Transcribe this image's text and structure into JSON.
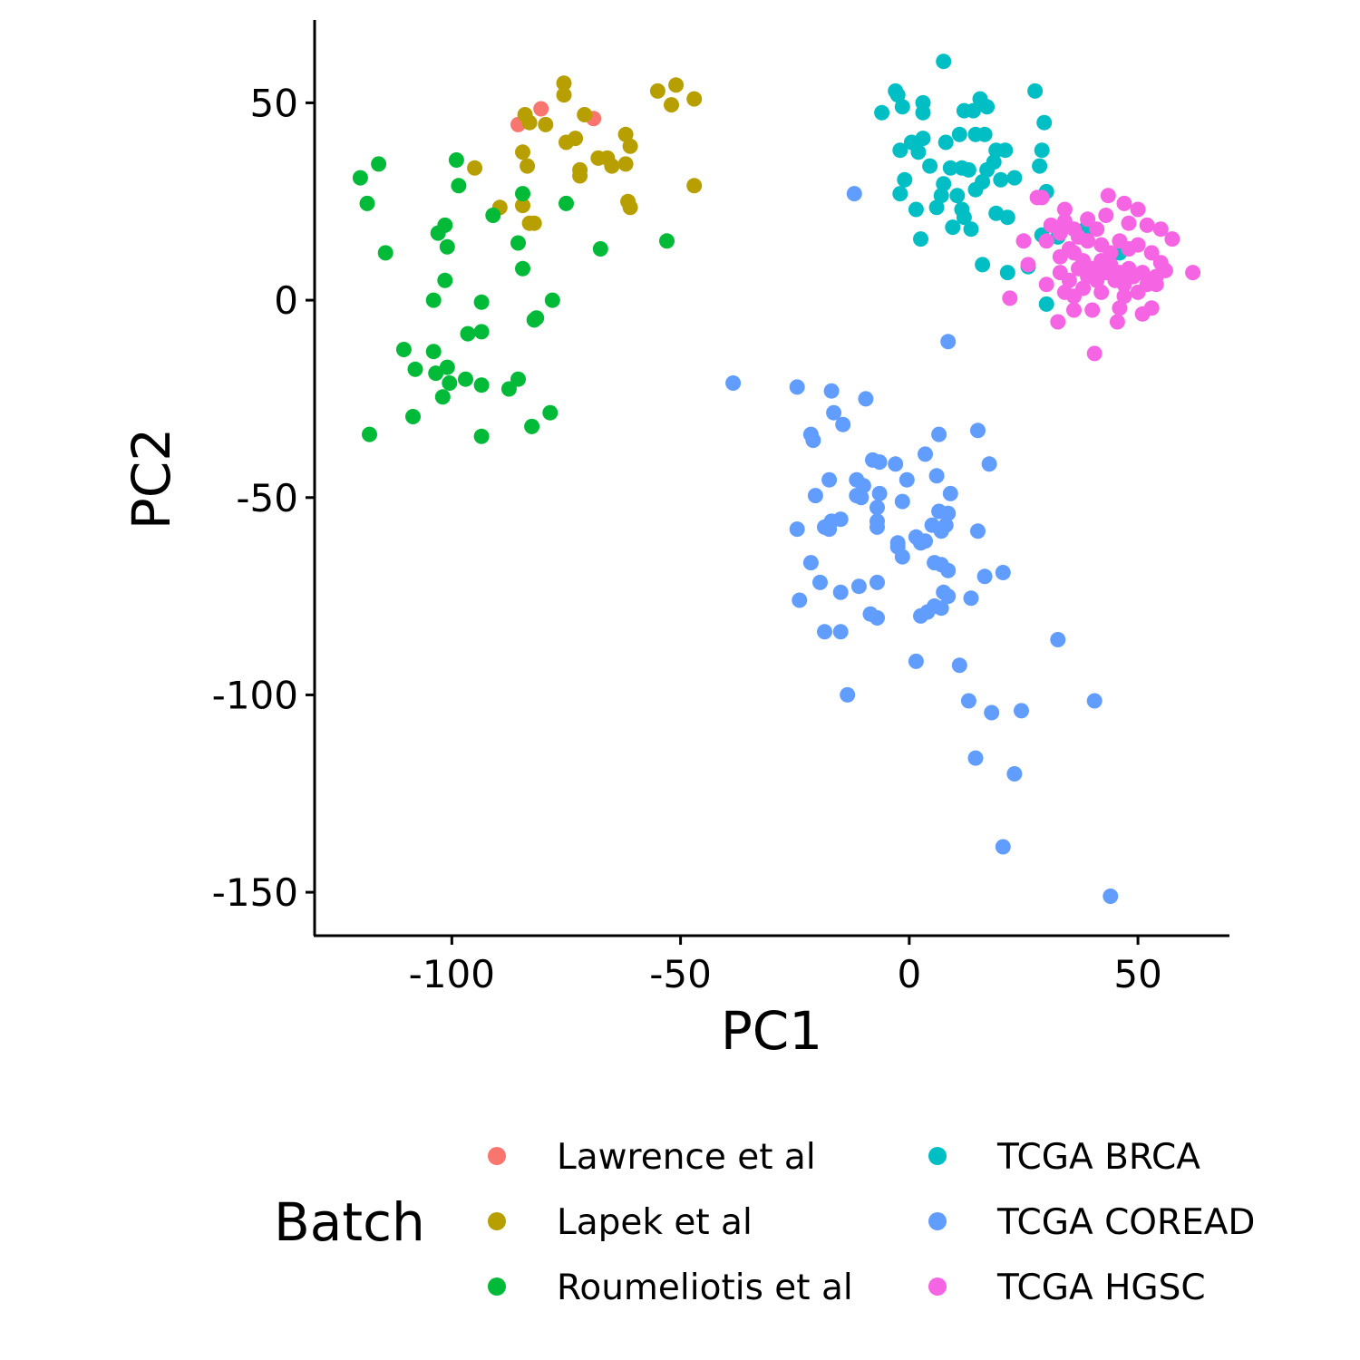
{
  "chart_data": {
    "type": "scatter",
    "xlabel": "PC1",
    "ylabel": "PC2",
    "xlim": [
      -130,
      70
    ],
    "ylim": [
      -161,
      71
    ],
    "x_ticks": [
      -100,
      -50,
      0,
      50
    ],
    "x_tick_labels": [
      "-100",
      "-50",
      "0",
      "50"
    ],
    "y_ticks": [
      50,
      0,
      -50,
      -100,
      -150
    ],
    "y_tick_labels": [
      "50",
      "0",
      "-50",
      "-100",
      "-150"
    ],
    "grid": false,
    "legend": {
      "title": "Batch",
      "position": "bottom",
      "columns": 2
    },
    "series": [
      {
        "name": "Lawrence et al",
        "color": "#F8766D",
        "points": [
          [
            -80.5,
            48.5
          ],
          [
            -85.5,
            44.5
          ],
          [
            -69,
            46
          ]
        ]
      },
      {
        "name": "Lapek et al",
        "color": "#B79F00",
        "points": [
          [
            -75.5,
            55
          ],
          [
            -75.5,
            52
          ],
          [
            -84,
            47
          ],
          [
            -83,
            45
          ],
          [
            -79.5,
            44.5
          ],
          [
            -71,
            47
          ],
          [
            -73,
            41
          ],
          [
            -75,
            40
          ],
          [
            -84.5,
            37.5
          ],
          [
            -83.5,
            34
          ],
          [
            -62,
            42
          ],
          [
            -61,
            39
          ],
          [
            -72,
            33
          ],
          [
            -72,
            31.5
          ],
          [
            -68,
            36
          ],
          [
            -66,
            36
          ],
          [
            -65,
            34
          ],
          [
            -62,
            34.5
          ],
          [
            -55,
            53
          ],
          [
            -51,
            54.5
          ],
          [
            -52,
            49.5
          ],
          [
            -47,
            51
          ],
          [
            -47,
            29
          ],
          [
            -95,
            33.5
          ],
          [
            -89.5,
            23.5
          ],
          [
            -83,
            19.5
          ],
          [
            -82,
            19.5
          ],
          [
            -84.5,
            24
          ],
          [
            -61.5,
            25
          ],
          [
            -61,
            23.5
          ]
        ]
      },
      {
        "name": "Roumeliotis et al",
        "color": "#00BA38",
        "points": [
          [
            -116,
            34.5
          ],
          [
            -120,
            31
          ],
          [
            -118.5,
            24.5
          ],
          [
            -114.5,
            12
          ],
          [
            -99,
            35.5
          ],
          [
            -98.5,
            29
          ],
          [
            -91,
            21.5
          ],
          [
            -84.5,
            27
          ],
          [
            -75,
            24.5
          ],
          [
            -101.5,
            19
          ],
          [
            -103,
            17
          ],
          [
            -101,
            13.5
          ],
          [
            -101.5,
            5
          ],
          [
            -104,
            0
          ],
          [
            -93.5,
            -0.5
          ],
          [
            -85.5,
            14.5
          ],
          [
            -84.5,
            8
          ],
          [
            -67.5,
            13
          ],
          [
            -53,
            15
          ],
          [
            -78,
            0
          ],
          [
            -81.5,
            -4.5
          ],
          [
            -82,
            -5
          ],
          [
            -96.5,
            -8.5
          ],
          [
            -93.5,
            -8
          ],
          [
            -110.5,
            -12.5
          ],
          [
            -104,
            -13
          ],
          [
            -108,
            -17.5
          ],
          [
            -101,
            -17
          ],
          [
            -103.5,
            -18.5
          ],
          [
            -100.5,
            -21
          ],
          [
            -97,
            -20
          ],
          [
            -93.5,
            -21.5
          ],
          [
            -102,
            -24.5
          ],
          [
            -87.5,
            -22.5
          ],
          [
            -85.5,
            -20
          ],
          [
            -78.5,
            -28.5
          ],
          [
            -108.5,
            -29.5
          ],
          [
            -118,
            -34
          ],
          [
            -93.5,
            -34.5
          ],
          [
            -82.5,
            -32
          ]
        ]
      },
      {
        "name": "TCGA BRCA",
        "color": "#00BFC4",
        "points": [
          [
            7.5,
            60.5
          ],
          [
            -3,
            53
          ],
          [
            -2.5,
            52
          ],
          [
            -1.5,
            49
          ],
          [
            3,
            50
          ],
          [
            3,
            47.5
          ],
          [
            -6,
            47.5
          ],
          [
            15.5,
            51
          ],
          [
            17,
            49
          ],
          [
            12,
            48
          ],
          [
            14,
            48
          ],
          [
            27.5,
            53
          ],
          [
            29.5,
            45
          ],
          [
            3,
            41
          ],
          [
            0.5,
            40
          ],
          [
            -2,
            38
          ],
          [
            2,
            37.5
          ],
          [
            4.5,
            34
          ],
          [
            -1,
            30.5
          ],
          [
            -2,
            27
          ],
          [
            7.5,
            29.5
          ],
          [
            9,
            33.5
          ],
          [
            11.5,
            33.5
          ],
          [
            8,
            40
          ],
          [
            11,
            42
          ],
          [
            14.5,
            42
          ],
          [
            16.5,
            42
          ],
          [
            19,
            38
          ],
          [
            21,
            38
          ],
          [
            18.5,
            35
          ],
          [
            17,
            33
          ],
          [
            13,
            33
          ],
          [
            16,
            30
          ],
          [
            20,
            30.5
          ],
          [
            23,
            31
          ],
          [
            14.5,
            28
          ],
          [
            10.5,
            26.5
          ],
          [
            7,
            26.5
          ],
          [
            6,
            23.5
          ],
          [
            11.5,
            23
          ],
          [
            1.5,
            23
          ],
          [
            19,
            22
          ],
          [
            12,
            21
          ],
          [
            21.5,
            21
          ],
          [
            9.5,
            18.5
          ],
          [
            13.5,
            18
          ],
          [
            2.5,
            15.5
          ],
          [
            29,
            38
          ],
          [
            28.5,
            34
          ],
          [
            30,
            27.5
          ],
          [
            16,
            9
          ],
          [
            21.5,
            7
          ],
          [
            26,
            8.5
          ],
          [
            38.5,
            18
          ],
          [
            32.5,
            16
          ],
          [
            29,
            16.5
          ],
          [
            46,
            12
          ],
          [
            30,
            -1
          ]
        ]
      },
      {
        "name": "TCGA COREAD",
        "color": "#619CFF",
        "points": [
          [
            -12,
            27
          ],
          [
            8.5,
            -10.5
          ],
          [
            -38.5,
            -21
          ],
          [
            -24.5,
            -22
          ],
          [
            -17,
            -23
          ],
          [
            -9.5,
            -25
          ],
          [
            -16.5,
            -28.5
          ],
          [
            -14.5,
            -31.5
          ],
          [
            6.5,
            -34
          ],
          [
            15,
            -33
          ],
          [
            -21.5,
            -34
          ],
          [
            -21,
            -35.5
          ],
          [
            3.5,
            -39
          ],
          [
            -8,
            -40.5
          ],
          [
            -6.5,
            -41
          ],
          [
            -3,
            -41.5
          ],
          [
            17.5,
            -41.5
          ],
          [
            -17.5,
            -45.5
          ],
          [
            -11.5,
            -45.5
          ],
          [
            -10,
            -47
          ],
          [
            6,
            -44.5
          ],
          [
            -0.5,
            -45.5
          ],
          [
            9,
            -49
          ],
          [
            -11.5,
            -49.5
          ],
          [
            -10.5,
            -50
          ],
          [
            -20.5,
            -49.5
          ],
          [
            -6.5,
            -49
          ],
          [
            -1.5,
            -51
          ],
          [
            -7,
            -52.5
          ],
          [
            6.5,
            -53.5
          ],
          [
            8.5,
            -54
          ],
          [
            -15,
            -55.5
          ],
          [
            -17,
            -56
          ],
          [
            -18.5,
            -57.5
          ],
          [
            -24.5,
            -58
          ],
          [
            -17.5,
            -58
          ],
          [
            -7,
            -56
          ],
          [
            -7,
            -57.5
          ],
          [
            5,
            -57
          ],
          [
            8,
            -57
          ],
          [
            7,
            -58.5
          ],
          [
            15,
            -58.5
          ],
          [
            1.5,
            -60
          ],
          [
            3.5,
            -61
          ],
          [
            2.5,
            -61.5
          ],
          [
            -2.5,
            -61.5
          ],
          [
            -2.5,
            -62.5
          ],
          [
            -1.5,
            -65
          ],
          [
            5.5,
            -66.5
          ],
          [
            7,
            -67
          ],
          [
            8.5,
            -68.5
          ],
          [
            16.5,
            -70
          ],
          [
            20.5,
            -69
          ],
          [
            -21.5,
            -66.5
          ],
          [
            -19.5,
            -71.5
          ],
          [
            -11,
            -72.5
          ],
          [
            -7,
            -71.5
          ],
          [
            -15,
            -74
          ],
          [
            -24,
            -76
          ],
          [
            13.5,
            -75.5
          ],
          [
            7.5,
            -74
          ],
          [
            8.5,
            -75
          ],
          [
            5.5,
            -77.5
          ],
          [
            7,
            -78
          ],
          [
            4,
            -79
          ],
          [
            2.5,
            -80
          ],
          [
            -8.5,
            -79.5
          ],
          [
            -7,
            -80.5
          ],
          [
            -18.5,
            -84
          ],
          [
            -15,
            -84
          ],
          [
            1.5,
            -91.5
          ],
          [
            11,
            -92.5
          ],
          [
            32.5,
            -86
          ],
          [
            13,
            -101.5
          ],
          [
            18,
            -104.5
          ],
          [
            24.5,
            -104
          ],
          [
            -13.5,
            -100
          ],
          [
            40.5,
            -101.5
          ],
          [
            14.5,
            -116
          ],
          [
            23,
            -120
          ],
          [
            20.5,
            -138.5
          ],
          [
            44,
            -151
          ]
        ]
      },
      {
        "name": "TCGA HGSC",
        "color": "#F564E3",
        "points": [
          [
            28,
            26
          ],
          [
            29,
            26
          ],
          [
            34,
            23
          ],
          [
            43.5,
            26.5
          ],
          [
            47,
            24.5
          ],
          [
            50,
            23
          ],
          [
            39,
            20.5
          ],
          [
            43,
            21.5
          ],
          [
            41,
            18
          ],
          [
            48,
            19.5
          ],
          [
            52,
            19
          ],
          [
            55,
            18
          ],
          [
            57.5,
            15.5
          ],
          [
            31,
            19
          ],
          [
            34,
            20
          ],
          [
            36,
            18
          ],
          [
            33,
            17
          ],
          [
            30,
            15
          ],
          [
            25,
            15
          ],
          [
            35,
            13
          ],
          [
            37,
            16
          ],
          [
            39,
            15
          ],
          [
            42,
            14
          ],
          [
            44,
            12
          ],
          [
            46,
            15
          ],
          [
            48,
            13
          ],
          [
            50,
            14
          ],
          [
            53,
            12
          ],
          [
            55,
            9.5
          ],
          [
            56,
            7.5
          ],
          [
            62,
            7
          ],
          [
            33,
            11
          ],
          [
            36,
            12
          ],
          [
            38,
            10
          ],
          [
            40,
            8
          ],
          [
            42,
            10
          ],
          [
            44,
            9
          ],
          [
            46,
            7
          ],
          [
            48,
            8
          ],
          [
            51,
            7
          ],
          [
            54,
            6
          ],
          [
            26,
            9
          ],
          [
            33,
            7
          ],
          [
            35,
            5
          ],
          [
            37,
            8
          ],
          [
            39,
            6
          ],
          [
            41,
            5
          ],
          [
            43,
            7
          ],
          [
            45,
            5
          ],
          [
            47,
            4
          ],
          [
            49,
            6
          ],
          [
            52,
            4
          ],
          [
            54,
            4
          ],
          [
            30,
            4
          ],
          [
            34,
            2
          ],
          [
            36,
            1
          ],
          [
            38,
            3
          ],
          [
            42,
            2
          ],
          [
            47,
            1
          ],
          [
            50,
            2
          ],
          [
            22,
            0.5
          ],
          [
            36,
            -2.5
          ],
          [
            40,
            -2.5
          ],
          [
            46,
            -2
          ],
          [
            51,
            -3.5
          ],
          [
            53,
            -2
          ],
          [
            32.5,
            -5.5
          ],
          [
            45.5,
            -5.5
          ],
          [
            40.5,
            -13.5
          ]
        ]
      }
    ]
  }
}
